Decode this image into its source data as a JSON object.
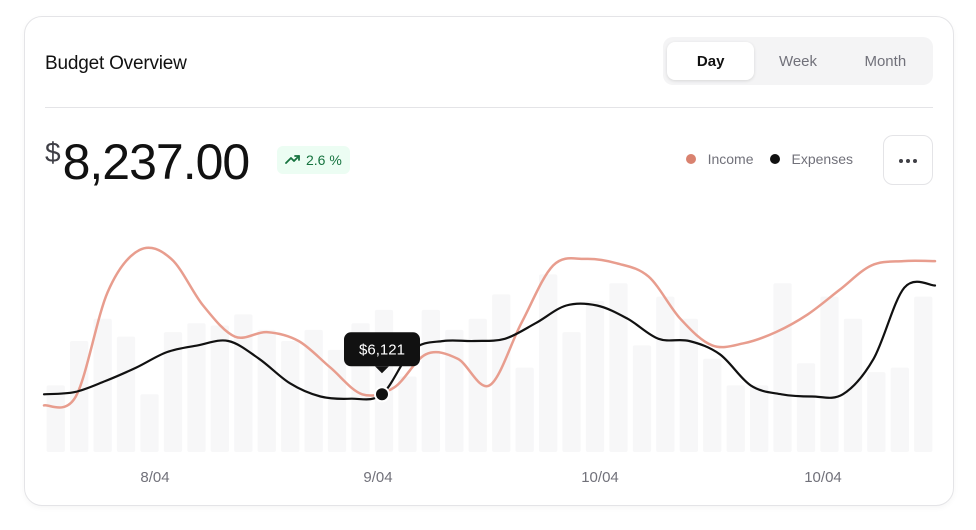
{
  "header": {
    "title": "Budget Overview",
    "tabs": [
      {
        "label": "Day",
        "active": true
      },
      {
        "label": "Week",
        "active": false
      },
      {
        "label": "Month",
        "active": false
      }
    ]
  },
  "summary": {
    "currency_symbol": "$",
    "amount": "8,237.00",
    "change": "2.6 %",
    "change_icon": "trending-up-icon",
    "change_color": "#16733f"
  },
  "legend": [
    {
      "label": "Income",
      "color": "#d9826f"
    },
    {
      "label": "Expenses",
      "color": "#111111"
    }
  ],
  "more_button_icon": "more-horizontal-icon",
  "chart_data": {
    "type": "line",
    "x_tick_labels": [
      "8/04",
      "9/04",
      "10/04",
      "10/04"
    ],
    "series": [
      {
        "name": "Income",
        "color": "#e89d8e",
        "values": [
          21,
          25,
          72,
          91,
          87,
          66,
          52,
          54,
          50,
          38,
          26,
          29,
          44,
          42,
          30,
          58,
          84,
          87,
          85,
          79,
          60,
          48,
          49,
          54,
          62,
          73,
          84,
          86,
          86
        ]
      },
      {
        "name": "Expenses",
        "color": "#111111",
        "values": [
          26,
          27,
          32,
          38,
          45,
          48,
          50,
          42,
          31,
          25,
          24,
          26,
          46,
          50,
          50,
          51,
          58,
          66,
          66,
          60,
          51,
          50,
          44,
          30,
          26,
          25,
          26,
          42,
          74,
          75
        ]
      },
      {
        "name": "Bars",
        "color": "#f7f7f8",
        "values": [
          30,
          50,
          60,
          52,
          26,
          54,
          58,
          57,
          62,
          55,
          50,
          55,
          46,
          58,
          64,
          34,
          64,
          55,
          60,
          71,
          38,
          80,
          54,
          68,
          76,
          48,
          70,
          60,
          42,
          30,
          30,
          76,
          40,
          70,
          60,
          36,
          38,
          70
        ]
      }
    ],
    "highlight": {
      "series": "Expenses",
      "label": "$6,121"
    },
    "ylim": [
      0,
      100
    ],
    "grid": false,
    "legend_placement": "top-right"
  }
}
